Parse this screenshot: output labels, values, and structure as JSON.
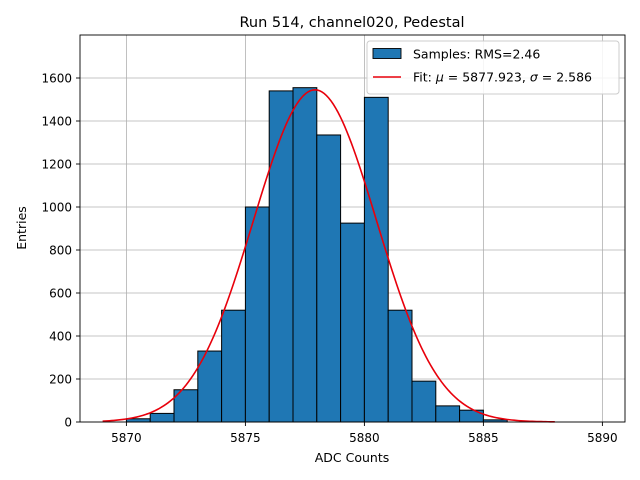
{
  "chart_data": {
    "type": "bar",
    "title": "Run 514, channel020, Pedestal",
    "xlabel": "ADC Counts",
    "ylabel": "Entries",
    "xlim": [
      5868.05,
      5890.95
    ],
    "ylim": [
      0,
      1800
    ],
    "xticks": [
      5870,
      5875,
      5880,
      5885,
      5890
    ],
    "yticks": [
      0,
      200,
      400,
      600,
      800,
      1000,
      1200,
      1400,
      1600
    ],
    "grid": true,
    "legend_position": "top-right",
    "histogram": {
      "name": "Samples: RMS=2.46",
      "color": "#1f77b4",
      "edge_color": "#000000",
      "bin_width": 1,
      "bin_starts": [
        5870,
        5871,
        5872,
        5873,
        5874,
        5875,
        5876,
        5877,
        5878,
        5879,
        5880,
        5881,
        5882,
        5883,
        5884,
        5885
      ],
      "values": [
        15,
        40,
        150,
        330,
        520,
        1000,
        1540,
        1555,
        1335,
        925,
        1510,
        520,
        190,
        75,
        55,
        10
      ]
    },
    "fit": {
      "label_prefix": "Fit: ",
      "mu_symbol": "μ",
      "sigma_symbol": "σ",
      "label_eq": " = ",
      "mu_value": "5877.923",
      "label_sep": ", ",
      "sigma_value": "2.586",
      "mu": 5877.923,
      "sigma": 2.586,
      "amplitude": 1545,
      "x_range": [
        5869,
        5888
      ],
      "color": "#e8000b"
    }
  }
}
